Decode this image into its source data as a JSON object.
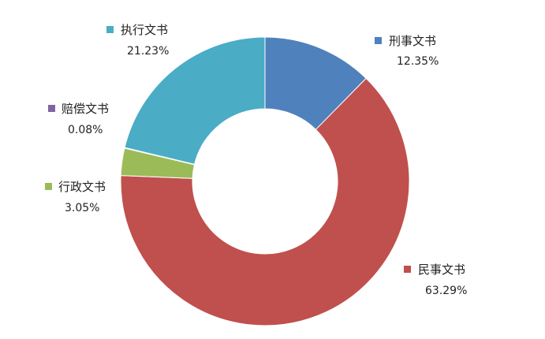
{
  "chart_data": {
    "type": "pie",
    "donut": true,
    "title": "",
    "slices": [
      {
        "label": "刑事文书",
        "value": 12.35,
        "display": "12.35%",
        "color": "#4f81bd"
      },
      {
        "label": "民事文书",
        "value": 63.29,
        "display": "63.29%",
        "color": "#c0504d"
      },
      {
        "label": "行政文书",
        "value": 3.05,
        "display": "3.05%",
        "color": "#9bbb59"
      },
      {
        "label": "赔偿文书",
        "value": 0.08,
        "display": "0.08%",
        "color": "#8064a2"
      },
      {
        "label": "执行文书",
        "value": 21.23,
        "display": "21.23%",
        "color": "#4bacc6"
      }
    ],
    "start_angle": "12 o'clock",
    "direction": "clockwise",
    "legend": "labels beside slices"
  }
}
